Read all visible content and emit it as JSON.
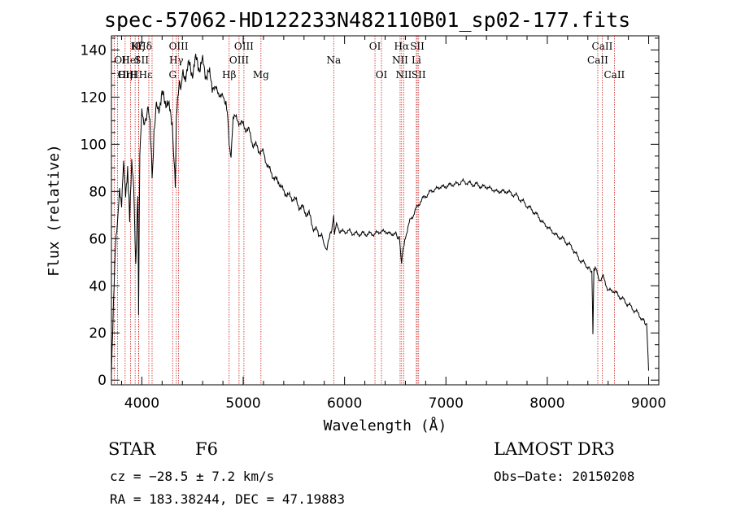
{
  "chart_data": {
    "type": "line",
    "title": "spec-57062-HD122233N482110B01_sp02-177.fits",
    "xlabel": "Wavelength (Å)",
    "ylabel": "Flux (relative)",
    "xlim": [
      3700,
      9100
    ],
    "ylim": [
      -2,
      146
    ],
    "x_ticks": [
      4000,
      5000,
      6000,
      7000,
      8000,
      9000
    ],
    "y_ticks": [
      0,
      20,
      40,
      60,
      80,
      100,
      120,
      140
    ],
    "grid": false,
    "series": [
      {
        "name": "spectrum",
        "x": [
          3700,
          3720,
          3740,
          3760,
          3780,
          3800,
          3820,
          3840,
          3860,
          3880,
          3900,
          3920,
          3940,
          3960,
          3968,
          3980,
          4000,
          4020,
          4050,
          4080,
          4101,
          4120,
          4150,
          4200,
          4250,
          4300,
          4330,
          4340,
          4360,
          4400,
          4450,
          4500,
          4550,
          4600,
          4650,
          4700,
          4750,
          4800,
          4830,
          4850,
          4861,
          4880,
          4900,
          4950,
          5000,
          5050,
          5100,
          5150,
          5200,
          5250,
          5300,
          5350,
          5400,
          5450,
          5500,
          5550,
          5600,
          5650,
          5700,
          5750,
          5780,
          5800,
          5820,
          5850,
          5880,
          5893,
          5900,
          5920,
          5950,
          6000,
          6050,
          6100,
          6150,
          6200,
          6250,
          6300,
          6350,
          6400,
          6450,
          6500,
          6540,
          6563,
          6580,
          6600,
          6650,
          6700,
          6750,
          6800,
          6850,
          6900,
          6950,
          7000,
          7050,
          7100,
          7150,
          7200,
          7250,
          7300,
          7350,
          7400,
          7450,
          7500,
          7550,
          7600,
          7650,
          7700,
          7750,
          7800,
          7850,
          7900,
          7950,
          8000,
          8050,
          8100,
          8150,
          8200,
          8250,
          8300,
          8350,
          8400,
          8440,
          8450,
          8460,
          8480,
          8500,
          8530,
          8550,
          8600,
          8650,
          8700,
          8750,
          8800,
          8850,
          8900,
          8950,
          8980,
          9000
        ],
        "y": [
          5,
          35,
          60,
          68,
          80,
          72,
          90,
          76,
          88,
          70,
          95,
          85,
          50,
          80,
          30,
          94,
          112,
          106,
          115,
          110,
          85,
          108,
          115,
          120,
          118,
          110,
          80,
          112,
          122,
          128,
          132,
          132,
          135,
          133,
          130,
          125,
          122,
          120,
          118,
          110,
          100,
          96,
          112,
          110,
          108,
          106,
          100,
          98,
          96,
          90,
          86,
          84,
          80,
          78,
          77,
          74,
          72,
          70,
          64,
          62,
          60,
          57,
          56,
          60,
          66,
          70,
          62,
          66,
          63,
          63,
          63,
          62,
          62,
          62,
          62,
          62,
          63,
          63,
          62,
          62,
          60,
          50,
          56,
          61,
          68,
          72,
          76,
          78,
          80,
          81,
          82,
          82,
          83,
          83,
          84,
          84,
          83,
          83,
          82,
          82,
          81,
          80,
          80,
          80,
          79,
          78,
          76,
          74,
          72,
          70,
          67,
          65,
          63,
          61,
          60,
          58,
          56,
          52,
          50,
          48,
          46,
          20,
          46,
          47,
          44,
          42,
          44,
          38,
          38,
          36,
          34,
          32,
          30,
          28,
          25,
          24,
          4
        ]
      }
    ],
    "line_markers": [
      {
        "label": "Hδ",
        "x": 4101,
        "row": 0,
        "anchor": "end"
      },
      {
        "label": "OII",
        "x": 3727,
        "row": 1,
        "anchor": "start"
      },
      {
        "label": "HeI",
        "x": 3889,
        "row": 1,
        "anchor": "middle"
      },
      {
        "label": "OIII",
        "x": 3760,
        "row": 2,
        "anchor": "start"
      },
      {
        "label": "Hη",
        "x": 3835,
        "row": 2,
        "anchor": "middle"
      },
      {
        "label": "Hε",
        "x": 3970,
        "row": 2,
        "anchor": "start"
      },
      {
        "label": "H",
        "x": 3968,
        "row": 2,
        "anchor": "end"
      },
      {
        "label": "K",
        "x": 3934,
        "row": 0,
        "anchor": "middle"
      },
      {
        "label": "Hζ",
        "x": 3889,
        "row": 0,
        "anchor": "start"
      },
      {
        "label": "SII",
        "x": 4069,
        "row": 1,
        "anchor": "end"
      },
      {
        "label": "OIII",
        "x": 4363,
        "row": 0,
        "anchor": "middle"
      },
      {
        "label": "Hγ",
        "x": 4340,
        "row": 1,
        "anchor": "middle"
      },
      {
        "label": "G",
        "x": 4304,
        "row": 2,
        "anchor": "middle"
      },
      {
        "label": "Hβ",
        "x": 4861,
        "row": 2,
        "anchor": "middle"
      },
      {
        "label": "OIII",
        "x": 5007,
        "row": 0,
        "anchor": "middle"
      },
      {
        "label": "OIII",
        "x": 4959,
        "row": 1,
        "anchor": "middle"
      },
      {
        "label": "Mg",
        "x": 5175,
        "row": 2,
        "anchor": "middle"
      },
      {
        "label": "Na",
        "x": 5893,
        "row": 1,
        "anchor": "middle"
      },
      {
        "label": "OI",
        "x": 6300,
        "row": 0,
        "anchor": "middle"
      },
      {
        "label": "OI",
        "x": 6364,
        "row": 2,
        "anchor": "middle"
      },
      {
        "label": "Hα",
        "x": 6563,
        "row": 0,
        "anchor": "middle"
      },
      {
        "label": "SII",
        "x": 6717,
        "row": 0,
        "anchor": "middle"
      },
      {
        "label": "NII",
        "x": 6548,
        "row": 1,
        "anchor": "middle"
      },
      {
        "label": "Li",
        "x": 6708,
        "row": 1,
        "anchor": "middle"
      },
      {
        "label": "NII",
        "x": 6584,
        "row": 2,
        "anchor": "middle"
      },
      {
        "label": "SII",
        "x": 6731,
        "row": 2,
        "anchor": "middle"
      },
      {
        "label": "CaII",
        "x": 8542,
        "row": 0,
        "anchor": "middle"
      },
      {
        "label": "CaII",
        "x": 8498,
        "row": 1,
        "anchor": "middle"
      },
      {
        "label": "CaII",
        "x": 8662,
        "row": 2,
        "anchor": "middle"
      }
    ],
    "marker_lines_x": [
      3727,
      3760,
      3835,
      3889,
      3934,
      3968,
      3970,
      4069,
      4101,
      4304,
      4340,
      4363,
      4861,
      4959,
      5007,
      5175,
      5893,
      6300,
      6364,
      6548,
      6563,
      6584,
      6708,
      6717,
      6731,
      8498,
      8542,
      8662
    ],
    "marker_color": "#cc2222"
  },
  "info": {
    "class_label": "STAR",
    "subclass_label": "F6",
    "survey": "LAMOST DR3",
    "cz": "cz = −28.5 ± 7.2 km/s",
    "obs_date": "Obs−Date: 20150208",
    "radec": "RA = 183.38244, DEC =  47.19883"
  }
}
